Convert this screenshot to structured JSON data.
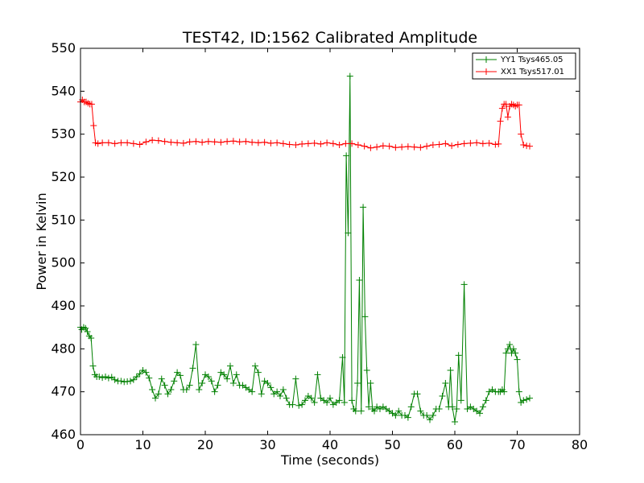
{
  "chart_data": {
    "type": "line",
    "title": "TEST42, ID:1562 Calibrated Amplitude",
    "xlabel": "Time (seconds)",
    "ylabel": "Power in Kelvin",
    "xlim": [
      0,
      80
    ],
    "ylim": [
      460,
      550
    ],
    "xticks": [
      0,
      10,
      20,
      30,
      40,
      50,
      60,
      70,
      80
    ],
    "yticks": [
      460,
      470,
      480,
      490,
      500,
      510,
      520,
      530,
      540,
      550
    ],
    "grid": false,
    "legend_position": "top-right",
    "marker": "+",
    "series": [
      {
        "name": "YY1 Tsys465.05",
        "color": "#008000",
        "x": [
          0.0,
          0.2,
          0.5,
          0.8,
          1.1,
          1.4,
          1.7,
          2.0,
          2.3,
          2.6,
          3.0,
          3.5,
          4.0,
          4.5,
          5.0,
          5.5,
          6.0,
          6.5,
          7.0,
          7.5,
          8.0,
          8.5,
          9.0,
          9.5,
          10.0,
          10.5,
          11.0,
          11.5,
          12.0,
          12.5,
          13.0,
          13.5,
          14.0,
          14.5,
          15.0,
          15.5,
          16.0,
          16.5,
          17.0,
          17.5,
          18.0,
          18.5,
          19.0,
          19.5,
          20.0,
          20.5,
          21.0,
          21.5,
          22.0,
          22.5,
          23.0,
          23.5,
          24.0,
          24.5,
          25.0,
          25.5,
          26.0,
          26.5,
          27.0,
          27.5,
          28.0,
          28.5,
          29.0,
          29.5,
          30.0,
          30.5,
          31.0,
          31.5,
          32.0,
          32.5,
          33.0,
          33.5,
          34.0,
          34.5,
          35.0,
          35.5,
          36.0,
          36.5,
          37.0,
          37.5,
          38.0,
          38.5,
          39.0,
          39.5,
          40.0,
          40.5,
          41.0,
          41.5,
          42.0,
          42.3,
          42.6,
          42.9,
          43.2,
          43.5,
          43.8,
          44.1,
          44.4,
          44.7,
          45.0,
          45.3,
          45.6,
          45.9,
          46.2,
          46.5,
          46.8,
          47.1,
          47.5,
          48.0,
          48.5,
          49.0,
          49.5,
          50.0,
          50.5,
          51.0,
          51.5,
          52.0,
          52.5,
          53.0,
          53.5,
          54.0,
          54.5,
          55.0,
          55.5,
          56.0,
          56.5,
          57.0,
          57.5,
          58.0,
          58.5,
          59.0,
          59.3,
          59.6,
          60.0,
          60.3,
          60.6,
          61.0,
          61.5,
          62.0,
          62.5,
          63.0,
          63.5,
          64.0,
          64.5,
          65.0,
          65.5,
          66.0,
          66.5,
          67.0,
          67.3,
          67.6,
          67.9,
          68.2,
          68.5,
          68.8,
          69.1,
          69.4,
          69.7,
          70.0,
          70.3,
          70.6,
          71.0,
          71.5,
          72.0
        ],
        "values": [
          485,
          484.5,
          485,
          484.8,
          484,
          483,
          482.5,
          476,
          474,
          473.5,
          473.5,
          473.3,
          473.5,
          473.2,
          473.4,
          472.8,
          472.5,
          472.5,
          472.3,
          472.4,
          472.5,
          472.8,
          473.5,
          474.2,
          475,
          474.5,
          473.2,
          470.5,
          468.5,
          469.5,
          473,
          471.5,
          469.5,
          470.5,
          472.5,
          474.5,
          473.8,
          470.5,
          470.5,
          471.5,
          475.5,
          481,
          470.5,
          472,
          474,
          473.5,
          472.5,
          470,
          471.5,
          474.5,
          474,
          473,
          476,
          472,
          474,
          471.5,
          471.5,
          471,
          470.5,
          470,
          476,
          474.5,
          469.5,
          472.5,
          472,
          471,
          469.5,
          470,
          469,
          470.5,
          468.5,
          467,
          467,
          473,
          466.8,
          467,
          468,
          469,
          468.5,
          467.5,
          474,
          468.5,
          468,
          467.5,
          468.5,
          467,
          467.5,
          468,
          478,
          467.5,
          525,
          507,
          543.5,
          468,
          466,
          465.5,
          472,
          496,
          465.5,
          513,
          487.5,
          475,
          466.5,
          472,
          466,
          465.5,
          466.5,
          466,
          466.5,
          466,
          465.5,
          465,
          464.5,
          465.5,
          464.5,
          464.5,
          464,
          466.5,
          469.5,
          469.5,
          465.5,
          464.5,
          464.5,
          463.5,
          464.5,
          466,
          466,
          469,
          472,
          466.5,
          475,
          466.5,
          463,
          466,
          478.5,
          468,
          495,
          466,
          466.5,
          466,
          465.5,
          465,
          466.5,
          468,
          470,
          470.5,
          470,
          470,
          470,
          470.5,
          470,
          479,
          480,
          481,
          479,
          480,
          479,
          477.5,
          470,
          467.5,
          468,
          468.2,
          468.5
        ]
      },
      {
        "name": "XX1 Tsys517.01",
        "color": "#ff0000",
        "x": [
          0.0,
          0.3,
          0.6,
          0.9,
          1.2,
          1.5,
          1.8,
          2.1,
          2.4,
          2.8,
          3.5,
          4.5,
          5.5,
          6.5,
          7.5,
          8.5,
          9.5,
          10.5,
          11.5,
          12.5,
          13.5,
          14.5,
          15.5,
          16.5,
          17.5,
          18.5,
          19.5,
          20.5,
          21.5,
          22.5,
          23.5,
          24.5,
          25.5,
          26.5,
          27.5,
          28.5,
          29.5,
          30.5,
          31.5,
          32.5,
          33.5,
          34.5,
          35.5,
          36.5,
          37.5,
          38.5,
          39.5,
          40.5,
          41.5,
          42.5,
          43.5,
          44.5,
          45.5,
          46.5,
          47.5,
          48.5,
          49.5,
          50.5,
          51.5,
          52.5,
          53.5,
          54.5,
          55.5,
          56.5,
          57.5,
          58.5,
          59.5,
          60.5,
          61.5,
          62.5,
          63.5,
          64.5,
          65.5,
          66.5,
          67.0,
          67.3,
          67.6,
          67.9,
          68.2,
          68.5,
          68.8,
          69.1,
          69.4,
          69.7,
          70.0,
          70.3,
          70.6,
          71.0,
          71.5,
          72.0
        ],
        "values": [
          537.5,
          538,
          537.5,
          537.5,
          537.2,
          537,
          537,
          532,
          528,
          527.8,
          528,
          528,
          527.8,
          528,
          528,
          527.8,
          527.6,
          528.2,
          528.6,
          528.5,
          528.3,
          528.1,
          528,
          527.9,
          528.2,
          528.3,
          528.1,
          528.3,
          528.2,
          528.1,
          528.3,
          528.4,
          528.2,
          528.3,
          528.1,
          528,
          528.1,
          527.9,
          528,
          527.8,
          527.6,
          527.5,
          527.7,
          527.8,
          527.9,
          527.7,
          528,
          527.8,
          527.5,
          527.8,
          527.8,
          527.5,
          527.2,
          526.8,
          527.0,
          527.3,
          527.2,
          526.9,
          527.0,
          527.1,
          527.0,
          526.9,
          527.2,
          527.5,
          527.6,
          527.8,
          527.3,
          527.6,
          527.8,
          527.9,
          528,
          527.8,
          527.9,
          527.6,
          527.7,
          533,
          536,
          537,
          537,
          534,
          536.5,
          537,
          536.8,
          536.5,
          536.8,
          536.8,
          530,
          527.5,
          527.3,
          527.2
        ]
      }
    ]
  }
}
